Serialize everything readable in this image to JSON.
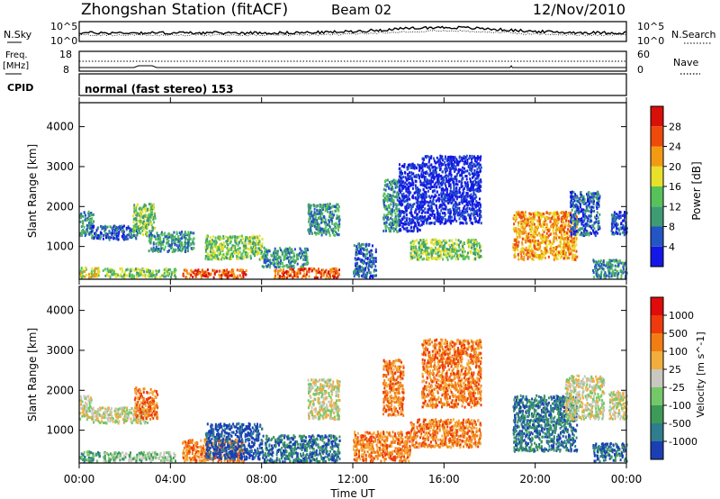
{
  "header": {
    "station": "Zhongshan Station (fitACF)",
    "beam": "Beam 02",
    "date": "12/Nov/2010"
  },
  "noise_panel": {
    "left_label": "N.Sky",
    "right_label": "N.Search",
    "left_ticks": [
      "10^5",
      "10^0"
    ],
    "right_ticks": [
      "10^5",
      "10^0"
    ]
  },
  "freq_panel": {
    "left_label_1": "Freq.",
    "left_label_2": "[MHz]",
    "right_label": "Nave",
    "left_ticks": [
      "18",
      "8"
    ],
    "right_ticks": [
      "60",
      "0"
    ]
  },
  "cpid_panel": {
    "label": "CPID",
    "text": "normal (fast stereo) 153"
  },
  "chart_data": [
    {
      "type": "heatmap",
      "title": "Power",
      "ylabel": "Slant Range [km]",
      "xlabel": "",
      "x_range_hours": [
        0,
        24
      ],
      "ylim": [
        180,
        4600
      ],
      "y_ticks": [
        "1000",
        "2000",
        "3000",
        "4000"
      ],
      "colorbar_label": "Power [dB]",
      "colorbar_ticks": [
        "4",
        "8",
        "12",
        "16",
        "20",
        "24",
        "28"
      ],
      "colorbar_colors": [
        "#1418e6",
        "#2455c4",
        "#3f9b73",
        "#58c25a",
        "#e8e02a",
        "#f39a14",
        "#ee4a0c",
        "#d90f0a"
      ],
      "scatter_regions": [
        {
          "t0": 0.0,
          "t1": 0.6,
          "r0": 1300,
          "r1": 1900,
          "level": 2
        },
        {
          "t0": 0.0,
          "t1": 0.9,
          "r0": 250,
          "r1": 500,
          "level": 4
        },
        {
          "t0": 0.5,
          "t1": 2.6,
          "r0": 1200,
          "r1": 1550,
          "level": 1
        },
        {
          "t0": 1.0,
          "t1": 4.2,
          "r0": 250,
          "r1": 480,
          "level": 3
        },
        {
          "t0": 2.3,
          "t1": 3.3,
          "r0": 1300,
          "r1": 2100,
          "level": 3
        },
        {
          "t0": 3.0,
          "t1": 5.0,
          "r0": 900,
          "r1": 1400,
          "level": 2
        },
        {
          "t0": 4.5,
          "t1": 7.3,
          "r0": 230,
          "r1": 450,
          "level": 6
        },
        {
          "t0": 5.5,
          "t1": 8.0,
          "r0": 700,
          "r1": 1300,
          "level": 3
        },
        {
          "t0": 8.0,
          "t1": 10.0,
          "r0": 500,
          "r1": 1000,
          "level": 2
        },
        {
          "t0": 8.5,
          "t1": 11.4,
          "r0": 230,
          "r1": 480,
          "level": 6
        },
        {
          "t0": 10.0,
          "t1": 11.4,
          "r0": 1300,
          "r1": 2100,
          "level": 2
        },
        {
          "t0": 12.0,
          "t1": 13.0,
          "r0": 250,
          "r1": 1100,
          "level": 1
        },
        {
          "t0": 13.3,
          "t1": 14.0,
          "r0": 1400,
          "r1": 2700,
          "level": 2
        },
        {
          "t0": 14.0,
          "t1": 15.0,
          "r0": 1400,
          "r1": 3100,
          "level": 0
        },
        {
          "t0": 14.5,
          "t1": 17.6,
          "r0": 700,
          "r1": 1200,
          "level": 3
        },
        {
          "t0": 15.0,
          "t1": 17.6,
          "r0": 1600,
          "r1": 3300,
          "level": 0
        },
        {
          "t0": 19.0,
          "t1": 21.8,
          "r0": 700,
          "r1": 1900,
          "level": 5
        },
        {
          "t0": 21.5,
          "t1": 22.8,
          "r0": 1300,
          "r1": 2400,
          "level": 1
        },
        {
          "t0": 22.5,
          "t1": 24.0,
          "r0": 250,
          "r1": 700,
          "level": 2
        },
        {
          "t0": 23.3,
          "t1": 24.0,
          "r0": 1300,
          "r1": 1900,
          "level": 1
        }
      ]
    },
    {
      "type": "heatmap",
      "title": "Velocity",
      "ylabel": "Slant Range [km]",
      "xlabel": "Time UT",
      "x_range_hours": [
        0,
        24
      ],
      "ylim": [
        180,
        4600
      ],
      "x_ticks": [
        "00:00",
        "04:00",
        "08:00",
        "12:00",
        "16:00",
        "20:00",
        "00:00"
      ],
      "y_ticks": [
        "1000",
        "2000",
        "3000",
        "4000"
      ],
      "colorbar_label": "Velocity [m s^-1]",
      "colorbar_ticks": [
        "1000",
        "500",
        "100",
        "25",
        "-25",
        "-100",
        "-500",
        "-1000"
      ],
      "colorbar_colors": [
        "#1a3fb5",
        "#2f7d8e",
        "#3d9a58",
        "#74c86a",
        "#c8c8c0",
        "#f2ad3c",
        "#f27d14",
        "#ee3a0c",
        "#e00b0b"
      ],
      "scatter_regions": [
        {
          "t0": 0.0,
          "t1": 0.9,
          "r0": 250,
          "r1": 500,
          "level": 2
        },
        {
          "t0": 0.0,
          "t1": 0.5,
          "r0": 1300,
          "r1": 1900,
          "level": 4
        },
        {
          "t0": 0.5,
          "t1": 3.0,
          "r0": 1200,
          "r1": 1600,
          "level": 4
        },
        {
          "t0": 1.0,
          "t1": 4.2,
          "r0": 250,
          "r1": 480,
          "level": 3
        },
        {
          "t0": 2.4,
          "t1": 3.4,
          "r0": 1300,
          "r1": 2100,
          "level": 6
        },
        {
          "t0": 4.5,
          "t1": 7.2,
          "r0": 230,
          "r1": 800,
          "level": 6
        },
        {
          "t0": 5.5,
          "t1": 8.0,
          "r0": 300,
          "r1": 1200,
          "level": 0
        },
        {
          "t0": 8.0,
          "t1": 11.4,
          "r0": 230,
          "r1": 900,
          "level": 1
        },
        {
          "t0": 10.0,
          "t1": 11.4,
          "r0": 1300,
          "r1": 2300,
          "level": 4
        },
        {
          "t0": 12.0,
          "t1": 14.5,
          "r0": 250,
          "r1": 1000,
          "level": 6
        },
        {
          "t0": 13.3,
          "t1": 14.2,
          "r0": 1400,
          "r1": 2800,
          "level": 6
        },
        {
          "t0": 14.5,
          "t1": 17.6,
          "r0": 600,
          "r1": 1300,
          "level": 6
        },
        {
          "t0": 15.0,
          "t1": 17.6,
          "r0": 1600,
          "r1": 3300,
          "level": 6
        },
        {
          "t0": 19.0,
          "t1": 21.8,
          "r0": 500,
          "r1": 1900,
          "level": 1
        },
        {
          "t0": 21.3,
          "t1": 23.0,
          "r0": 1300,
          "r1": 2400,
          "level": 4
        },
        {
          "t0": 22.5,
          "t1": 24.0,
          "r0": 250,
          "r1": 700,
          "level": 1
        },
        {
          "t0": 23.2,
          "t1": 24.0,
          "r0": 1300,
          "r1": 2000,
          "level": 4
        }
      ]
    }
  ]
}
